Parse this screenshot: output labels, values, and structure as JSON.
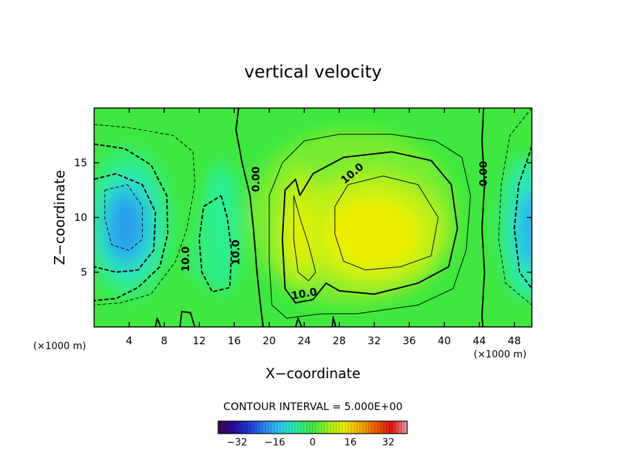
{
  "chart_data": {
    "type": "heatmap",
    "title": "vertical velocity",
    "xlabel": "X−coordinate",
    "ylabel": "Z−coordinate",
    "x_unit": "(×1000 m)",
    "y_unit": "(×1000 m)",
    "xlim": [
      0,
      50
    ],
    "ylim": [
      0,
      20
    ],
    "x_ticks": [
      4,
      8,
      12,
      16,
      20,
      24,
      28,
      32,
      36,
      40,
      44,
      48
    ],
    "y_ticks": [
      5,
      10,
      15
    ],
    "contour_interval_text": "CONTOUR INTERVAL = 5.000E+00",
    "colorbar": {
      "range": [
        -40,
        40
      ],
      "ticks": [
        -32,
        -16,
        0,
        16,
        32
      ],
      "tick_labels": [
        "−32",
        "−16",
        "0",
        "16",
        "32"
      ],
      "colors": [
        "#3a0a4a",
        "#2a0aa0",
        "#1a3cd8",
        "#2a8af0",
        "#2ad0f0",
        "#2af0a0",
        "#40e840",
        "#a0f020",
        "#f0f000",
        "#f0b000",
        "#f06000",
        "#e01010",
        "#f0a0a0"
      ]
    },
    "series": [
      {
        "feature": "downdraft",
        "center": [
          3.5,
          9
        ],
        "peak": -20
      },
      {
        "feature": "downdraft",
        "center": [
          14.5,
          9
        ],
        "peak": -8
      },
      {
        "feature": "downdraft",
        "center": [
          50,
          9
        ],
        "peak": -18
      },
      {
        "feature": "updraft",
        "center": [
          23.5,
          9
        ],
        "peak": 12
      },
      {
        "feature": "updraft",
        "center": [
          31.5,
          8.5
        ],
        "peak": 14
      }
    ],
    "contour_labels": [
      {
        "text": "0.00",
        "x": 18.5,
        "z": 13.5,
        "angle": -90
      },
      {
        "text": "0.00",
        "x": 44.5,
        "z": 14,
        "angle": -90
      },
      {
        "text": "10.0",
        "x": 29.5,
        "z": 14,
        "angle": -40
      },
      {
        "text": "10.0",
        "x": 24,
        "z": 3,
        "angle": -10
      },
      {
        "text": "10.0",
        "x": 10.5,
        "z": 6.2,
        "angle": -90
      },
      {
        "text": "10.0",
        "x": 16.2,
        "z": 6.8,
        "angle": -90
      }
    ]
  }
}
